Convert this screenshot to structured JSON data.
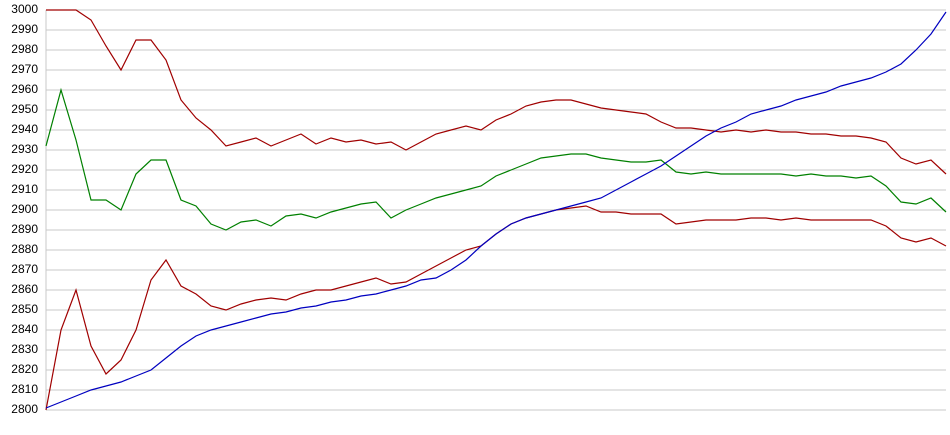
{
  "chart_data": {
    "type": "line",
    "categories": [
      null,
      null,
      null,
      null,
      null,
      null,
      null,
      null,
      null,
      null,
      null,
      null,
      null,
      null,
      null,
      null,
      null,
      null,
      null,
      null,
      null,
      null,
      null,
      null,
      null,
      null,
      null,
      null,
      null,
      null,
      null,
      null,
      null,
      null,
      null,
      null,
      null,
      null,
      null,
      null,
      null,
      null,
      null,
      null,
      null,
      null,
      null,
      null,
      null,
      null,
      null,
      null,
      null,
      null,
      null,
      null,
      null,
      null,
      null,
      null,
      null
    ],
    "series": [
      {
        "color": "#a00000",
        "values": [
          3000,
          3000,
          3000,
          2995,
          2982,
          2970,
          2985,
          2985,
          2975,
          2955,
          2946,
          2940,
          2932,
          2934,
          2936,
          2932,
          2935,
          2938,
          2933,
          2936,
          2934,
          2935,
          2933,
          2934,
          2930,
          2934,
          2938,
          2940,
          2942,
          2940,
          2945,
          2948,
          2952,
          2954,
          2955,
          2955,
          2953,
          2951,
          2950,
          2949,
          2948,
          2944,
          2941,
          2941,
          2940,
          2939,
          2940,
          2939,
          2940,
          2939,
          2939,
          2938,
          2938,
          2937,
          2937,
          2936,
          2934,
          2926,
          2923,
          2925,
          2918
        ]
      },
      {
        "color": "#008000",
        "values": [
          2932,
          2960,
          2935,
          2905,
          2905,
          2900,
          2918,
          2925,
          2925,
          2905,
          2902,
          2893,
          2890,
          2894,
          2895,
          2892,
          2897,
          2898,
          2896,
          2899,
          2901,
          2903,
          2904,
          2896,
          2900,
          2903,
          2906,
          2908,
          2910,
          2912,
          2917,
          2920,
          2923,
          2926,
          2927,
          2928,
          2928,
          2926,
          2925,
          2924,
          2924,
          2925,
          2919,
          2918,
          2919,
          2918,
          2918,
          2918,
          2918,
          2918,
          2917,
          2918,
          2917,
          2917,
          2916,
          2917,
          2912,
          2904,
          2903,
          2906,
          2899
        ]
      },
      {
        "color": "#a00000",
        "values": [
          2800,
          2840,
          2860,
          2832,
          2818,
          2825,
          2840,
          2865,
          2875,
          2862,
          2858,
          2852,
          2850,
          2853,
          2855,
          2856,
          2855,
          2858,
          2860,
          2860,
          2862,
          2864,
          2866,
          2863,
          2864,
          2868,
          2872,
          2876,
          2880,
          2882,
          2888,
          2893,
          2896,
          2898,
          2900,
          2901,
          2902,
          2899,
          2899,
          2898,
          2898,
          2898,
          2893,
          2894,
          2895,
          2895,
          2895,
          2896,
          2896,
          2895,
          2896,
          2895,
          2895,
          2895,
          2895,
          2895,
          2892,
          2886,
          2884,
          2886,
          2882
        ]
      },
      {
        "color": "#0000c0",
        "values": [
          2801,
          2804,
          2807,
          2810,
          2812,
          2814,
          2817,
          2820,
          2826,
          2832,
          2837,
          2840,
          2842,
          2844,
          2846,
          2848,
          2849,
          2851,
          2852,
          2854,
          2855,
          2857,
          2858,
          2860,
          2862,
          2865,
          2866,
          2870,
          2875,
          2882,
          2888,
          2893,
          2896,
          2898,
          2900,
          2902,
          2904,
          2906,
          2910,
          2914,
          2918,
          2922,
          2927,
          2932,
          2937,
          2941,
          2944,
          2948,
          2950,
          2952,
          2955,
          2957,
          2959,
          2962,
          2964,
          2966,
          2969,
          2973,
          2980,
          2988,
          2999
        ]
      }
    ],
    "ylim": [
      2800,
      3000
    ],
    "yticks": [
      2800,
      2810,
      2820,
      2830,
      2840,
      2850,
      2860,
      2870,
      2880,
      2890,
      2900,
      2910,
      2920,
      2930,
      2940,
      2950,
      2960,
      2970,
      2980,
      2990,
      3000
    ],
    "grid": true
  }
}
